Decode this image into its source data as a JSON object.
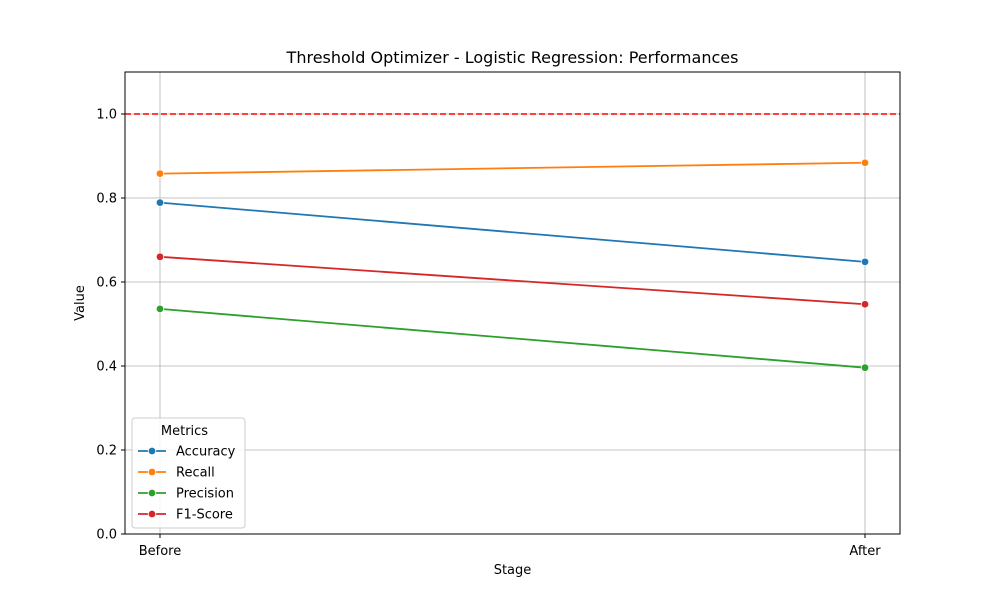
{
  "chart_data": {
    "type": "line",
    "title": "Threshold Optimizer - Logistic Regression: Performances",
    "xlabel": "Stage",
    "ylabel": "Value",
    "categories": [
      "Before",
      "After"
    ],
    "ylim": [
      0,
      1.1
    ],
    "yticks": [
      "0.0",
      "0.2",
      "0.4",
      "0.6",
      "0.8",
      "1.0"
    ],
    "grid": true,
    "reference_line": {
      "y": 1.0,
      "color": "#ff0000",
      "style": "dashed"
    },
    "legend": {
      "title": "Metrics",
      "placement": "lower-left"
    },
    "series": [
      {
        "name": "Accuracy",
        "color": "#1f77b4",
        "values": [
          0.789,
          0.648
        ]
      },
      {
        "name": "Recall",
        "color": "#ff7f0e",
        "values": [
          0.858,
          0.884
        ]
      },
      {
        "name": "Precision",
        "color": "#2ca02c",
        "values": [
          0.536,
          0.396
        ]
      },
      {
        "name": "F1-Score",
        "color": "#d62728",
        "values": [
          0.66,
          0.547
        ]
      }
    ]
  }
}
